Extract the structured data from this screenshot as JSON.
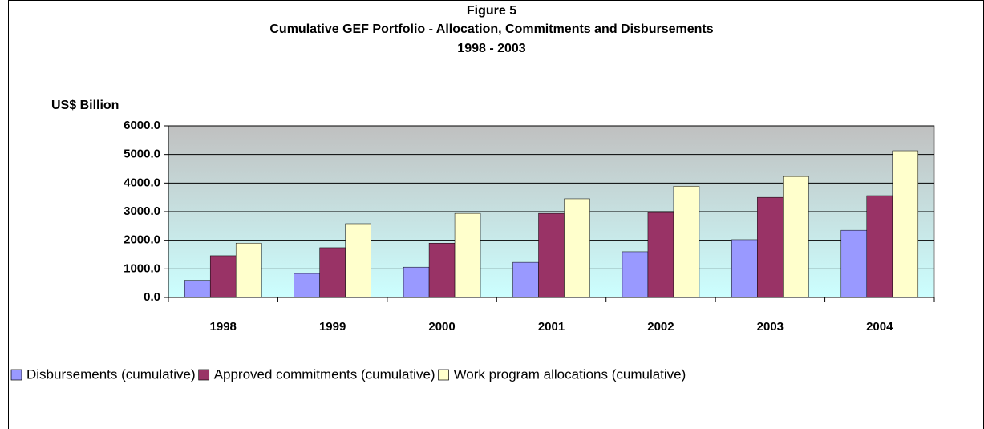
{
  "chart_data": {
    "type": "bar",
    "title": "Figure 5",
    "subtitle": "Cumulative GEF Portfolio - Allocation, Commitments and Disbursements",
    "subtitle2": "1998 - 2003",
    "y_label": "US$ Billion",
    "categories": [
      "1998",
      "1999",
      "2000",
      "2001",
      "2002",
      "2003",
      "2004"
    ],
    "series": [
      {
        "name": "Disbursements (cumulative)",
        "color": "#9999ff",
        "values": [
          600,
          840,
          1060,
          1230,
          1600,
          2020,
          2350
        ]
      },
      {
        "name": "Approved commitments (cumulative)",
        "color": "#993366",
        "values": [
          1460,
          1740,
          1900,
          2940,
          2970,
          3500,
          3560
        ]
      },
      {
        "name": "Work program allocations (cumulative)",
        "color": "#ffffcc",
        "values": [
          1900,
          2580,
          2940,
          3450,
          3890,
          4230,
          5130
        ]
      }
    ],
    "ylim": [
      0,
      6000
    ],
    "yticks": [
      {
        "value": 0,
        "label": "0.0"
      },
      {
        "value": 1000,
        "label": "1000.0"
      },
      {
        "value": 2000,
        "label": "2000.0"
      },
      {
        "value": 3000,
        "label": "3000.0"
      },
      {
        "value": 4000,
        "label": "4000.0"
      },
      {
        "value": 5000,
        "label": "5000.0"
      },
      {
        "value": 6000,
        "label": "6000.0"
      }
    ],
    "grid": true,
    "legend": "bottom"
  }
}
